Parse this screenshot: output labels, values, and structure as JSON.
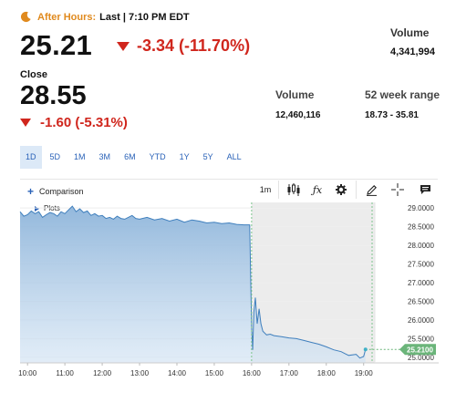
{
  "after_hours": {
    "label": "After Hours:",
    "last_text": "Last | 7:10 PM EDT",
    "price": "25.21",
    "change": "-3.34 (-11.70%)",
    "volume_label": "Volume",
    "volume_value": "4,341,994"
  },
  "close": {
    "label": "Close",
    "price": "28.55",
    "change": "-1.60 (-5.31%)"
  },
  "stats": {
    "volume_label": "Volume",
    "volume_value": "12,460,116",
    "range_label": "52 week range",
    "range_value": "18.73 - 35.81"
  },
  "ranges": [
    "1D",
    "5D",
    "1M",
    "3M",
    "6M",
    "YTD",
    "1Y",
    "5Y",
    "ALL"
  ],
  "active_range": "1D",
  "toolbar": {
    "comparison_label": "Comparison",
    "interval": "1m",
    "plots_label": "Plots"
  },
  "colors": {
    "accent": "#2a62b8",
    "negative": "#d0261d",
    "after_hours": "#e08a1e",
    "line": "#3f7fbd",
    "current_tag": "#6bb57a"
  },
  "icons": [
    "moon-icon",
    "down-triangle-icon",
    "plus-icon",
    "candlestick-icon",
    "fx-icon",
    "gear-icon",
    "pencil-icon",
    "crosshair-icon",
    "comment-icon",
    "play-icon"
  ],
  "chart_data": {
    "type": "area",
    "x_ticks": [
      "10:00",
      "11:00",
      "12:00",
      "13:00",
      "14:00",
      "15:00",
      "16:00",
      "17:00",
      "18:00",
      "19:00"
    ],
    "y_ticks": [
      "29.0000",
      "28.5000",
      "28.0000",
      "27.5000",
      "27.0000",
      "26.5000",
      "26.0000",
      "25.5000",
      "25.0000"
    ],
    "ylim": [
      24.85,
      29.15
    ],
    "xlim": [
      9.8,
      19.3
    ],
    "current_value_label": "25.2100",
    "current_value": 25.21,
    "grid": true,
    "series": [
      {
        "x": [
          9.8,
          9.9,
          10.0,
          10.1,
          10.2,
          10.3,
          10.4,
          10.5,
          10.6,
          10.7,
          10.8,
          10.9,
          11.0,
          11.1,
          11.2,
          11.3,
          11.4,
          11.5,
          11.6,
          11.7,
          11.8,
          11.9,
          12.0,
          12.1,
          12.2,
          12.3,
          12.4,
          12.5,
          12.6,
          12.7,
          12.8,
          12.9,
          13.0,
          13.2,
          13.4,
          13.6,
          13.8,
          14.0,
          14.2,
          14.4,
          14.6,
          14.8,
          15.0,
          15.2,
          15.4,
          15.6,
          15.8,
          15.95,
          16.0,
          16.03,
          16.06,
          16.1,
          16.15,
          16.2,
          16.25,
          16.3,
          16.4,
          16.5,
          16.6,
          16.8,
          17.0,
          17.2,
          17.4,
          17.6,
          17.8,
          18.0,
          18.2,
          18.4,
          18.5,
          18.6,
          18.8,
          18.9,
          19.0,
          19.05
        ],
        "values": [
          28.9,
          28.78,
          28.82,
          28.92,
          28.85,
          28.9,
          28.75,
          28.82,
          28.88,
          28.85,
          28.78,
          28.9,
          28.85,
          28.95,
          29.05,
          28.9,
          28.98,
          28.88,
          28.92,
          28.8,
          28.85,
          28.78,
          28.8,
          28.72,
          28.75,
          28.7,
          28.78,
          28.72,
          28.7,
          28.75,
          28.8,
          28.72,
          28.7,
          28.75,
          28.68,
          28.72,
          28.65,
          28.7,
          28.62,
          28.68,
          28.65,
          28.6,
          28.62,
          28.58,
          28.6,
          28.56,
          28.55,
          28.55,
          25.8,
          25.2,
          26.2,
          26.6,
          25.9,
          26.3,
          25.9,
          25.7,
          25.6,
          25.62,
          25.58,
          25.55,
          25.52,
          25.5,
          25.45,
          25.4,
          25.35,
          25.28,
          25.2,
          25.15,
          25.1,
          25.05,
          25.08,
          24.98,
          25.02,
          25.21
        ]
      }
    ]
  }
}
